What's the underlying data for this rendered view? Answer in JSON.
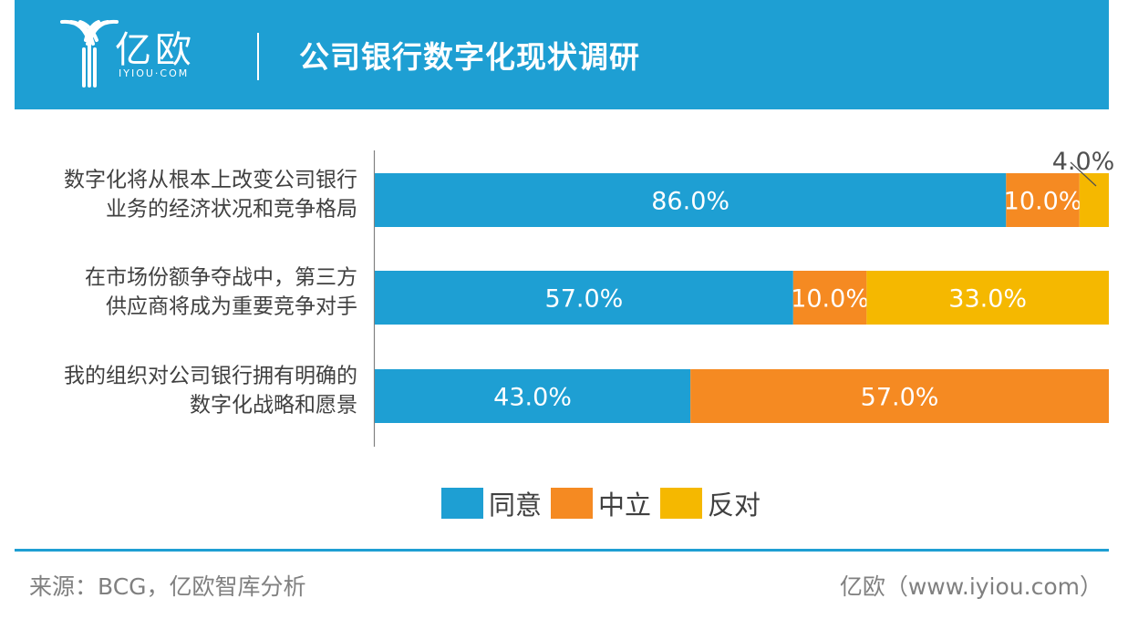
{
  "header": {
    "brand_cn": "亿欧",
    "brand_en": "IYIOU·COM",
    "title": "公司银行数字化现状调研"
  },
  "chart_data": {
    "type": "bar",
    "orientation": "horizontal",
    "stacked": true,
    "categories": [
      [
        "数字化将从根本上改变公司银行",
        "业务的经济状况和竞争格局"
      ],
      [
        "在市场份额争夺战中，第三方",
        "供应商将成为重要竞争对手"
      ],
      [
        "我的组织对公司银行拥有明确的",
        "数字化战略和愿景"
      ]
    ],
    "series": [
      {
        "name": "同意",
        "values": [
          86.0,
          57.0,
          43.0
        ],
        "labels": [
          "86.0%",
          "57.0%",
          "43.0%"
        ],
        "color": "#1e9fd3"
      },
      {
        "name": "中立",
        "values": [
          10.0,
          10.0,
          57.0
        ],
        "labels": [
          "10.0%",
          "10.0%",
          "57.0%"
        ],
        "color": "#f58a22"
      },
      {
        "name": "反对",
        "values": [
          4.0,
          33.0,
          0
        ],
        "labels": [
          "4.0%",
          "33.0%",
          ""
        ],
        "color": "#f5b800"
      }
    ],
    "xlim": [
      0,
      100
    ],
    "grid": false,
    "legend_position": "bottom"
  },
  "footer": {
    "source": "来源：BCG，亿欧智库分析",
    "site": "亿欧（www.iyiou.com）"
  }
}
